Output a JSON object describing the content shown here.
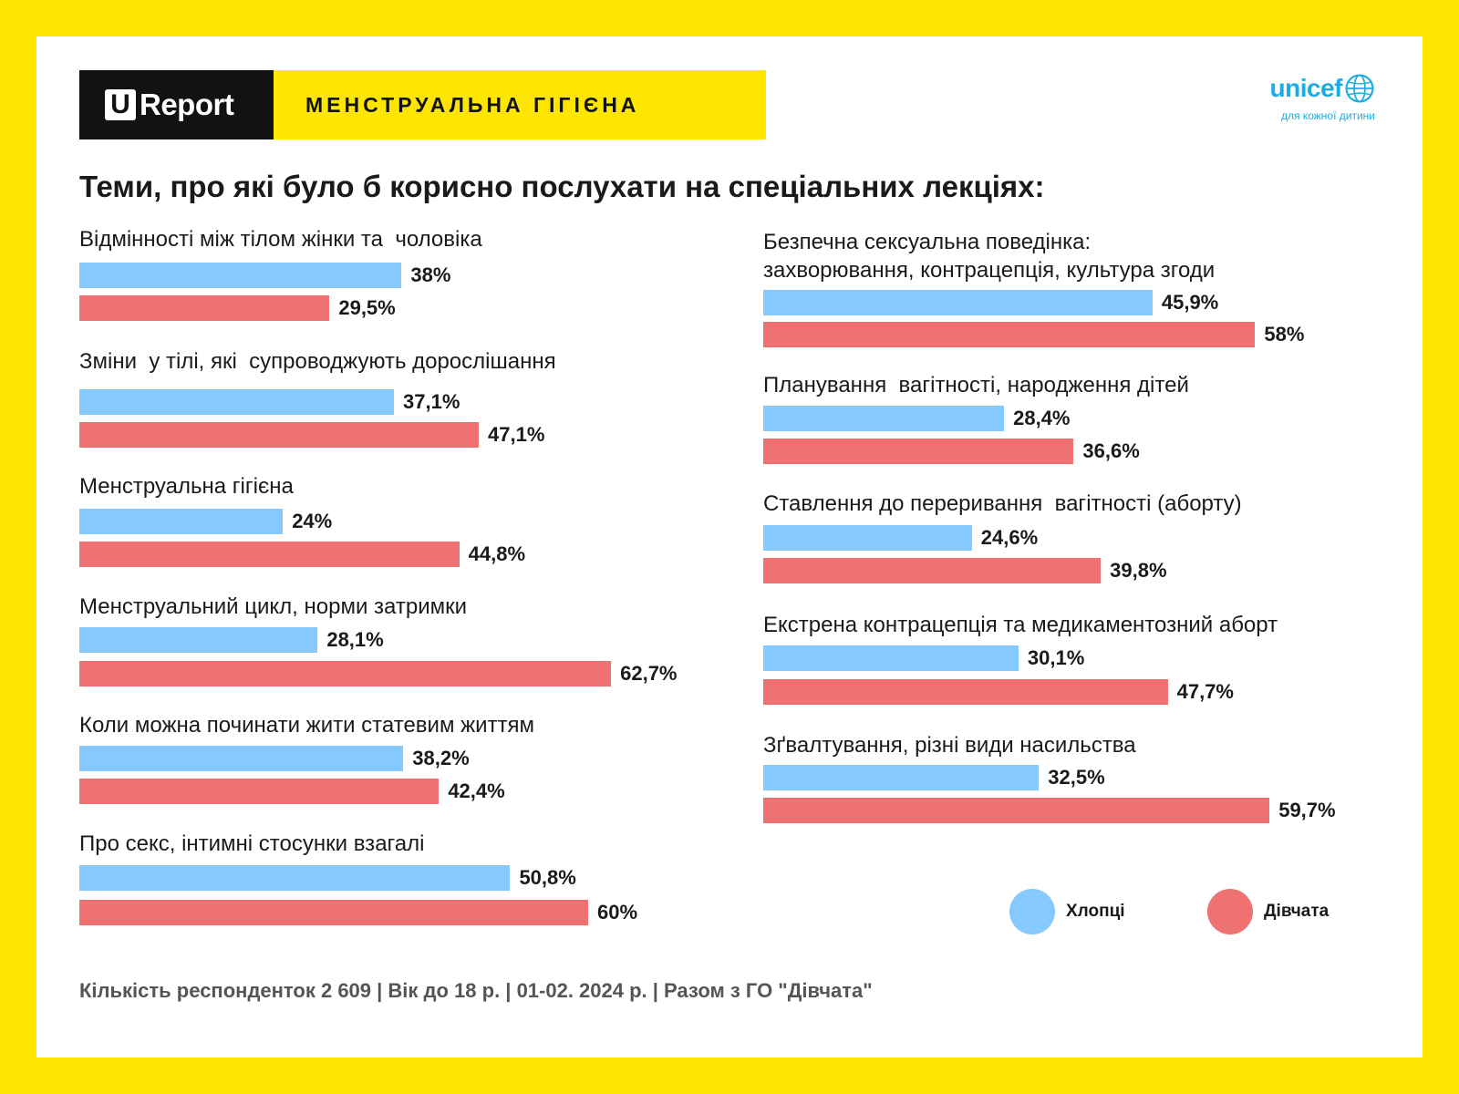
{
  "header": {
    "brand_u": "U",
    "brand_report": "Report",
    "topic": "МЕНСТРУАЛЬНА  ГІГІЄНА",
    "partner_logo": "unicef",
    "partner_tagline": "для кожної дитини"
  },
  "colors": {
    "boys": "#85C9FF",
    "girls": "#EE7272",
    "background": "#FFE600",
    "brand_blue": "#1CABE2"
  },
  "legend": {
    "boys": "Хлопці",
    "girls": "Дівчата"
  },
  "footer": "Кількість респонденток 2 609 |  Вік до 18 р. | 01-02. 2024 р. | Разом з  ГО \"Дівчата\"",
  "chart_data": {
    "type": "bar",
    "orientation": "horizontal",
    "title": "Теми, про які було б корисно послухати на спеціальних лекціях:",
    "unit": "%",
    "series_names": [
      "Хлопці",
      "Дівчата"
    ],
    "categories": [
      {
        "label": "Відмінності між тілом жінки та  чоловіка",
        "boys": 38,
        "boys_label": "38%",
        "girls": 29.5,
        "girls_label": "29,5%"
      },
      {
        "label": "Зміни  у тілі, які  супроводжують дорослішання",
        "boys": 37.1,
        "boys_label": "37,1%",
        "girls": 47.1,
        "girls_label": "47,1%"
      },
      {
        "label": "Менструальна гігієна",
        "boys": 24,
        "boys_label": "24%",
        "girls": 44.8,
        "girls_label": "44,8%"
      },
      {
        "label": "Менструальний цикл, норми затримки",
        "boys": 28.1,
        "boys_label": "28,1%",
        "girls": 62.7,
        "girls_label": "62,7%"
      },
      {
        "label": "Коли можна починати жити статевим життям",
        "boys": 38.2,
        "boys_label": "38,2%",
        "girls": 42.4,
        "girls_label": "42,4%"
      },
      {
        "label": "Про секс, інтимні стосунки взагалі",
        "boys": 50.8,
        "boys_label": "50,8%",
        "girls": 60,
        "girls_label": "60%"
      },
      {
        "label": "Безпечна сексуальна поведінка:\nзахворювання, контрацепція, культура згоди",
        "boys": 45.9,
        "boys_label": "45,9%",
        "girls": 58,
        "girls_label": "58%"
      },
      {
        "label": "Планування  вагітності, народження дітей",
        "boys": 28.4,
        "boys_label": "28,4%",
        "girls": 36.6,
        "girls_label": "36,6%"
      },
      {
        "label": "Ставлення до переривання  вагітності (аборту)",
        "boys": 24.6,
        "boys_label": "24,6%",
        "girls": 39.8,
        "girls_label": "39,8%"
      },
      {
        "label": "Екстрена контрацепція та медикаментозний аборт",
        "boys": 30.1,
        "boys_label": "30,1%",
        "girls": 47.7,
        "girls_label": "47,7%"
      },
      {
        "label": "Зґвалтування, різні види насильства",
        "boys": 32.5,
        "boys_label": "32,5%",
        "girls": 59.7,
        "girls_label": "59,7%"
      }
    ]
  }
}
